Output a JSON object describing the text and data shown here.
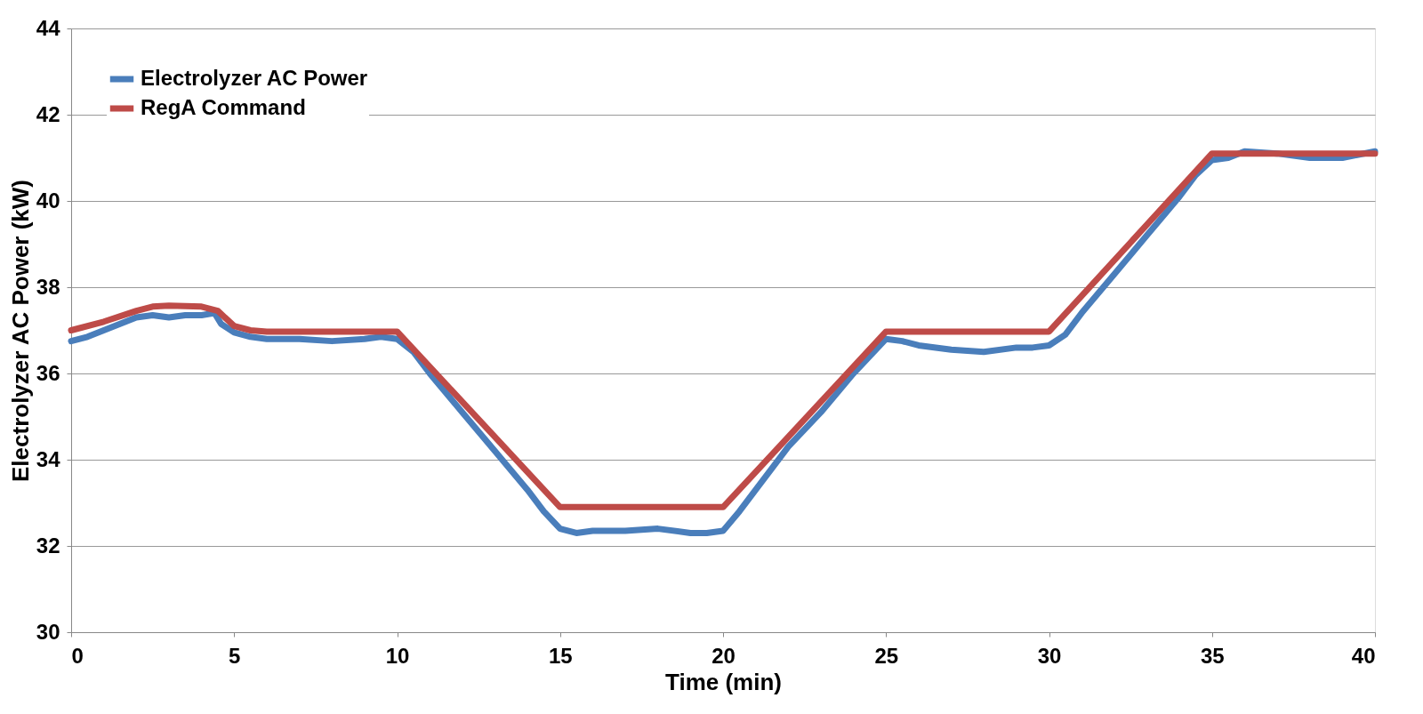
{
  "chart_data": {
    "type": "line",
    "xlabel": "Time (min)",
    "ylabel": "Electrolyzer AC Power (kW)",
    "xlim": [
      0,
      40
    ],
    "xticks": [
      0,
      5,
      10,
      15,
      20,
      25,
      30,
      35,
      40
    ],
    "ylim": [
      30,
      44
    ],
    "yticks": [
      30,
      32,
      34,
      36,
      38,
      40,
      42,
      44
    ],
    "grid": "y",
    "legend": "top left",
    "marker": "none",
    "line_style": "solid",
    "series": [
      {
        "name": "Electrolyzer AC Power",
        "color": "#4a7ebb",
        "x": [
          0,
          0.5,
          1,
          1.5,
          2,
          2.5,
          3,
          3.5,
          4,
          4.4,
          4.6,
          5,
          5.5,
          6,
          7,
          8,
          9,
          9.5,
          10,
          10.5,
          11,
          12,
          13,
          14,
          14.5,
          15,
          15.5,
          16,
          17,
          18,
          19,
          19.5,
          20,
          20.5,
          21,
          22,
          23,
          24,
          24.5,
          25,
          25.5,
          26,
          27,
          28,
          29,
          29.5,
          30,
          30.5,
          31,
          32,
          33,
          34,
          34.5,
          35,
          35.5,
          36,
          37,
          38,
          39,
          40
        ],
        "values": [
          36.75,
          36.85,
          37.0,
          37.15,
          37.3,
          37.35,
          37.3,
          37.35,
          37.35,
          37.4,
          37.15,
          36.95,
          36.85,
          36.8,
          36.8,
          36.75,
          36.8,
          36.85,
          36.8,
          36.5,
          36.0,
          35.1,
          34.2,
          33.3,
          32.8,
          32.4,
          32.3,
          32.35,
          32.35,
          32.4,
          32.3,
          32.3,
          32.35,
          32.8,
          33.3,
          34.3,
          35.1,
          36.0,
          36.4,
          36.8,
          36.75,
          36.65,
          36.55,
          36.5,
          36.6,
          36.6,
          36.65,
          36.9,
          37.4,
          38.3,
          39.2,
          40.1,
          40.6,
          40.95,
          41.0,
          41.15,
          41.1,
          41.0,
          41.0,
          41.15
        ]
      },
      {
        "name": "RegA Command",
        "color": "#be4b48",
        "x": [
          0,
          1,
          2,
          2.5,
          3,
          4,
          4.5,
          5,
          5.5,
          6,
          10,
          15,
          20,
          25,
          30,
          35,
          40
        ],
        "values": [
          37.0,
          37.2,
          37.45,
          37.55,
          37.57,
          37.55,
          37.45,
          37.1,
          37.0,
          36.97,
          36.97,
          32.9,
          32.9,
          36.97,
          36.97,
          41.1,
          41.1
        ]
      }
    ]
  }
}
